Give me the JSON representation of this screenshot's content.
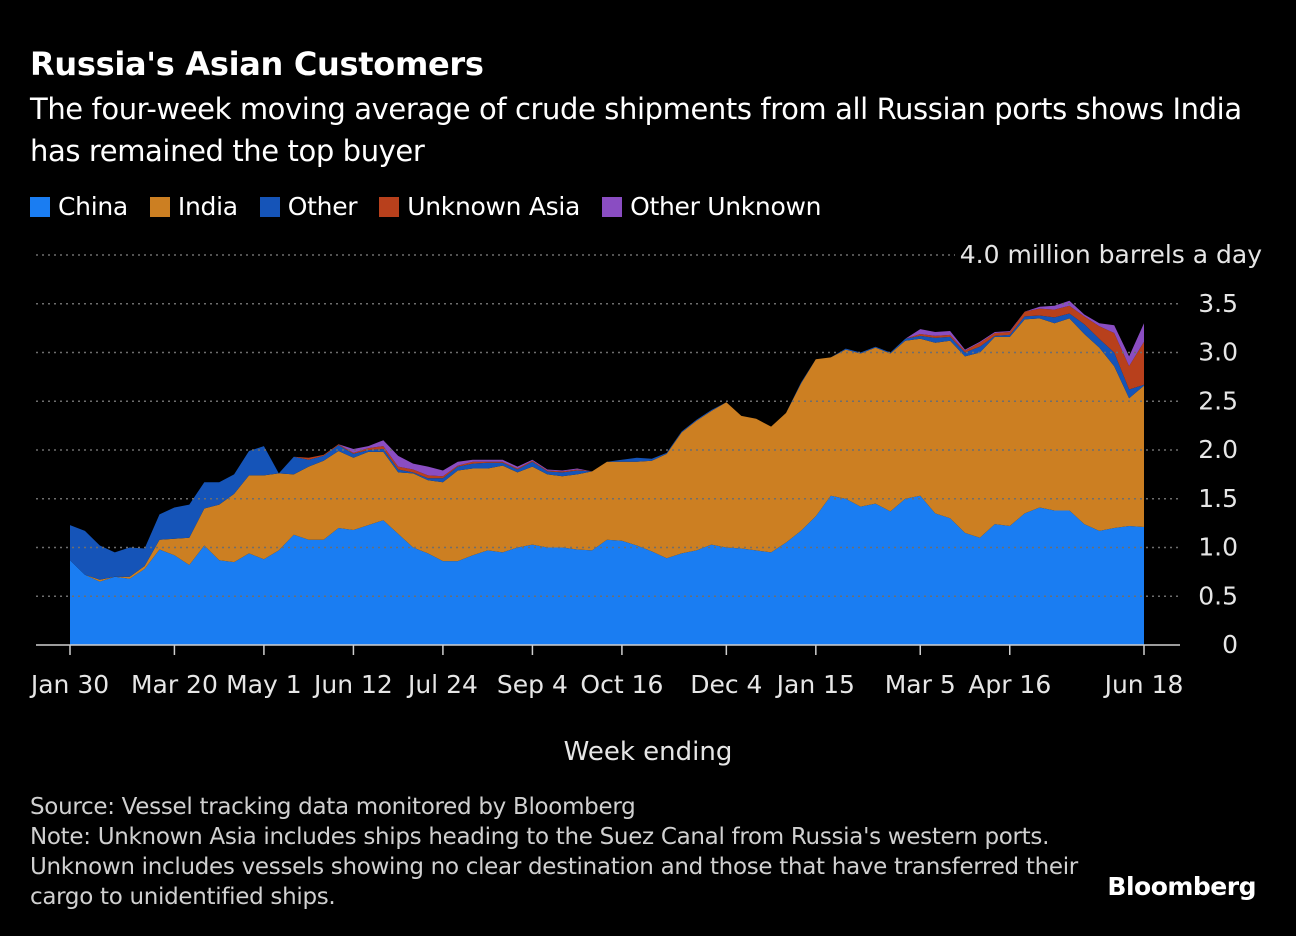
{
  "header": {
    "title": "Russia's Asian Customers",
    "subtitle": "The four-week moving average of crude shipments from all Russian ports shows India has remained the top buyer"
  },
  "footer": {
    "source": "Source: Vessel tracking data monitored by Bloomberg",
    "note": "Note: Unknown Asia includes ships heading to the Suez Canal from Russia's western ports. Unknown includes vessels showing no clear destination and those that have transferred their cargo to unidentified ships.",
    "brand": "Bloomberg"
  },
  "colors": {
    "China": "#1a7df2",
    "India": "#cc7f22",
    "Other": "#1554b8",
    "Unknown Asia": "#b8401c",
    "Other Unknown": "#8a4dc2",
    "grid": "#6e6e6e",
    "axis": "#cfcfcf"
  },
  "chart_data": {
    "type": "area",
    "stacked": true,
    "xlabel": "Week ending",
    "unit_label": "million barrels a day",
    "ylim": [
      0,
      4.0
    ],
    "yticks": [
      0,
      0.5,
      1.0,
      1.5,
      2.0,
      2.5,
      3.0,
      3.5,
      4.0
    ],
    "ytick_labels": [
      "0",
      "0.5",
      "1.0",
      "1.5",
      "2.0",
      "2.5",
      "3.0",
      "3.5",
      "4.0"
    ],
    "xtick_labels": [
      "Jan 30",
      "Mar 20",
      "May 1",
      "Jun 12",
      "Jul 24",
      "Sep 4",
      "Oct 16",
      "Dec 4",
      "Jan 15",
      "Mar 5",
      "Apr 16",
      "Jun 18"
    ],
    "xtick_index": [
      0,
      7,
      13,
      19,
      25,
      31,
      37,
      44,
      50,
      57,
      63,
      72
    ],
    "legend": [
      "China",
      "India",
      "Other",
      "Unknown Asia",
      "Other Unknown"
    ],
    "legend_position": "top-left",
    "grid": true,
    "x": [
      "Jan 30",
      "Feb 6",
      "Feb 13",
      "Feb 20",
      "Feb 27",
      "Mar 6",
      "Mar 13",
      "Mar 20",
      "Mar 27",
      "Apr 3",
      "Apr 10",
      "Apr 17",
      "Apr 24",
      "May 1",
      "May 8",
      "May 15",
      "May 22",
      "May 29",
      "Jun 5",
      "Jun 12",
      "Jun 19",
      "Jun 26",
      "Jul 3",
      "Jul 10",
      "Jul 17",
      "Jul 24",
      "Jul 31",
      "Aug 7",
      "Aug 14",
      "Aug 21",
      "Aug 28",
      "Sep 4",
      "Sep 11",
      "Sep 18",
      "Sep 25",
      "Oct 2",
      "Oct 9",
      "Oct 16",
      "Oct 23",
      "Oct 30",
      "Nov 6",
      "Nov 13",
      "Nov 20",
      "Nov 27",
      "Dec 4",
      "Dec 11",
      "Dec 18",
      "Dec 25",
      "Jan 1",
      "Jan 8",
      "Jan 15",
      "Jan 22",
      "Jan 29",
      "Feb 5",
      "Feb 12",
      "Feb 19",
      "Feb 26",
      "Mar 5",
      "Mar 12",
      "Mar 19",
      "Mar 26",
      "Apr 2",
      "Apr 9",
      "Apr 16",
      "Apr 23",
      "Apr 30",
      "May 7",
      "May 14",
      "May 21",
      "May 28",
      "Jun 4",
      "Jun 11",
      "Jun 18"
    ],
    "series": [
      {
        "name": "China",
        "values": [
          0.87,
          0.72,
          0.65,
          0.7,
          0.68,
          0.78,
          0.98,
          0.92,
          0.82,
          1.02,
          0.87,
          0.85,
          0.94,
          0.88,
          0.97,
          1.13,
          1.08,
          1.08,
          1.2,
          1.18,
          1.23,
          1.28,
          1.14,
          1.0,
          0.94,
          0.86,
          0.86,
          0.92,
          0.97,
          0.95,
          1.0,
          1.03,
          1.0,
          1.0,
          0.98,
          0.97,
          1.08,
          1.07,
          1.02,
          0.96,
          0.89,
          0.94,
          0.97,
          1.03,
          1.0,
          0.99,
          0.97,
          0.95,
          1.05,
          1.17,
          1.32,
          1.53,
          1.5,
          1.42,
          1.45,
          1.37,
          1.5,
          1.53,
          1.35,
          1.3,
          1.15,
          1.1,
          1.24,
          1.22,
          1.35,
          1.41,
          1.38,
          1.38,
          1.24,
          1.17,
          1.2,
          1.22,
          1.21
        ]
      },
      {
        "name": "India",
        "values": [
          0.0,
          0.0,
          0.02,
          0.0,
          0.02,
          0.03,
          0.1,
          0.17,
          0.28,
          0.38,
          0.57,
          0.7,
          0.8,
          0.86,
          0.79,
          0.62,
          0.75,
          0.81,
          0.79,
          0.74,
          0.75,
          0.7,
          0.63,
          0.76,
          0.75,
          0.81,
          0.93,
          0.89,
          0.84,
          0.89,
          0.77,
          0.8,
          0.75,
          0.73,
          0.77,
          0.81,
          0.8,
          0.81,
          0.86,
          0.93,
          1.07,
          1.24,
          1.33,
          1.37,
          1.49,
          1.36,
          1.35,
          1.29,
          1.33,
          1.51,
          1.61,
          1.42,
          1.53,
          1.57,
          1.6,
          1.62,
          1.62,
          1.61,
          1.75,
          1.82,
          1.81,
          1.9,
          1.92,
          1.94,
          1.99,
          1.94,
          1.92,
          1.97,
          1.95,
          1.88,
          1.66,
          1.31,
          1.45
        ]
      },
      {
        "name": "Other",
        "values": [
          0.36,
          0.45,
          0.35,
          0.25,
          0.3,
          0.18,
          0.26,
          0.32,
          0.34,
          0.27,
          0.23,
          0.2,
          0.25,
          0.3,
          0.0,
          0.18,
          0.07,
          0.05,
          0.06,
          0.04,
          0.02,
          0.03,
          0.03,
          0.01,
          0.02,
          0.04,
          0.04,
          0.05,
          0.06,
          0.03,
          0.03,
          0.05,
          0.03,
          0.04,
          0.04,
          0.0,
          0.0,
          0.02,
          0.04,
          0.02,
          0.01,
          0.01,
          0.01,
          0.01,
          0.0,
          0.0,
          0.0,
          0.0,
          0.0,
          0.01,
          0.0,
          0.0,
          0.01,
          0.01,
          0.01,
          0.01,
          0.02,
          0.03,
          0.05,
          0.04,
          0.04,
          0.06,
          0.01,
          0.02,
          0.03,
          0.03,
          0.06,
          0.05,
          0.1,
          0.09,
          0.14,
          0.09,
          0.01
        ]
      },
      {
        "name": "Unknown Asia",
        "values": [
          0,
          0,
          0,
          0,
          0,
          0,
          0,
          0,
          0,
          0,
          0,
          0,
          0,
          0,
          0,
          0,
          0.02,
          0.01,
          0.01,
          0.01,
          0.02,
          0.03,
          0.03,
          0.03,
          0.03,
          0.02,
          0.01,
          0.02,
          0.01,
          0.01,
          0.01,
          0.01,
          0.01,
          0.01,
          0.01,
          0,
          0,
          0,
          0,
          0,
          0,
          0,
          0,
          0,
          0,
          0,
          0,
          0,
          0,
          0,
          0,
          0,
          0,
          0,
          0,
          0,
          0,
          0.02,
          0.02,
          0.02,
          0.02,
          0.04,
          0.03,
          0.03,
          0.05,
          0.07,
          0.08,
          0.08,
          0.08,
          0.13,
          0.2,
          0.24,
          0.44
        ]
      },
      {
        "name": "Other Unknown",
        "values": [
          0,
          0,
          0,
          0,
          0,
          0,
          0,
          0,
          0,
          0,
          0,
          0,
          0,
          0,
          0,
          0,
          0,
          0,
          0,
          0.04,
          0.02,
          0.06,
          0.11,
          0.06,
          0.09,
          0.06,
          0.04,
          0.02,
          0.02,
          0.02,
          0.02,
          0.01,
          0.01,
          0.01,
          0.01,
          0,
          0,
          0,
          0,
          0,
          0,
          0,
          0,
          0,
          0,
          0,
          0,
          0,
          0,
          0,
          0,
          0,
          0,
          0,
          0,
          0,
          0,
          0.05,
          0.04,
          0.04,
          0.01,
          0.01,
          0.01,
          0.01,
          0,
          0.02,
          0.04,
          0.05,
          0.02,
          0.03,
          0.08,
          0.1,
          0.19
        ]
      }
    ]
  }
}
